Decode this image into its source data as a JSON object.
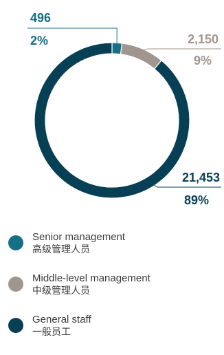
{
  "chart_data": {
    "type": "pie",
    "title": "",
    "slices": [
      {
        "label": "Senior management",
        "label_cn": "高级管理人员",
        "value": 496,
        "value_text": "496",
        "percent": 2,
        "percent_text": "2%",
        "color": "#146f87"
      },
      {
        "label": "Middle-level management",
        "label_cn": "中级管理人员",
        "value": 2150,
        "value_text": "2,150",
        "percent": 9,
        "percent_text": "9%",
        "color": "#a1958f"
      },
      {
        "label": "General staff",
        "label_cn": "一般员工",
        "value": 21453,
        "value_text": "21,453",
        "percent": 89,
        "percent_text": "89%",
        "color": "#073f55"
      }
    ],
    "legend_position": "bottom",
    "donut": true
  }
}
